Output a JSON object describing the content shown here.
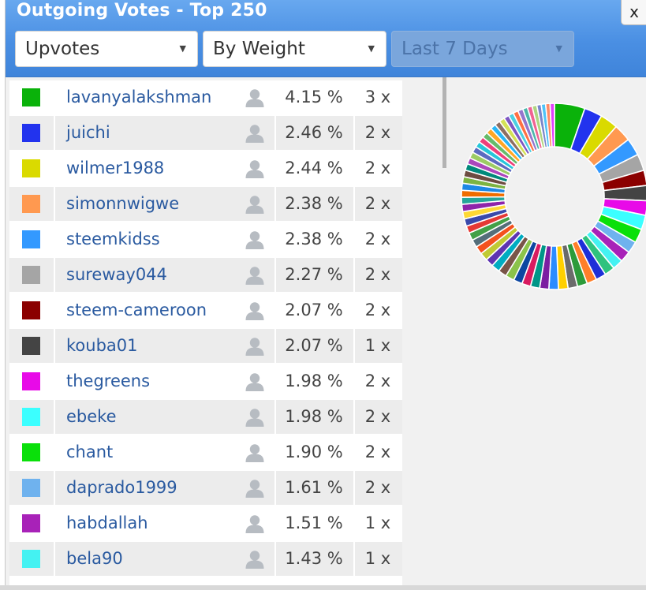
{
  "window": {
    "title": "Outgoing Votes - Top 250",
    "close_label": "x"
  },
  "filters": {
    "type": "Upvotes",
    "sort": "By Weight",
    "period": "Last 7 Days",
    "period_disabled": true
  },
  "colors": {
    "title_bar": "#4a8fe3",
    "link": "#2a5aa0"
  },
  "voters": [
    {
      "name": "lavanyalakshman",
      "color": "#0ab20a",
      "percent": "4.15 %",
      "count": "3 x"
    },
    {
      "name": "juichi",
      "color": "#2233ee",
      "percent": "2.46 %",
      "count": "2 x"
    },
    {
      "name": "wilmer1988",
      "color": "#dada00",
      "percent": "2.44 %",
      "count": "2 x"
    },
    {
      "name": "simonnwigwe",
      "color": "#ff9950",
      "percent": "2.38 %",
      "count": "2 x"
    },
    {
      "name": "steemkidss",
      "color": "#3399ff",
      "percent": "2.38 %",
      "count": "2 x"
    },
    {
      "name": "sureway044",
      "color": "#a5a5a5",
      "percent": "2.27 %",
      "count": "2 x"
    },
    {
      "name": "steem-cameroon",
      "color": "#8b0000",
      "percent": "2.07 %",
      "count": "2 x"
    },
    {
      "name": "kouba01",
      "color": "#444444",
      "percent": "2.07 %",
      "count": "1 x"
    },
    {
      "name": "thegreens",
      "color": "#e80ae8",
      "percent": "1.98 %",
      "count": "2 x"
    },
    {
      "name": "ebeke",
      "color": "#3bffff",
      "percent": "1.98 %",
      "count": "2 x"
    },
    {
      "name": "chant",
      "color": "#0ae00a",
      "percent": "1.90 %",
      "count": "2 x"
    },
    {
      "name": "daprado1999",
      "color": "#6fb2ee",
      "percent": "1.61 %",
      "count": "2 x"
    },
    {
      "name": "habdallah",
      "color": "#a822b8",
      "percent": "1.51 %",
      "count": "1 x"
    },
    {
      "name": "bela90",
      "color": "#44f2f2",
      "percent": "1.43 %",
      "count": "1 x"
    }
  ],
  "icons": {
    "voter": "user-icon",
    "dropdown": "caret-down-icon"
  },
  "chart_data": {
    "type": "pie",
    "style": "donut",
    "series": [
      {
        "values": [
          4.15,
          2.46,
          2.44,
          2.38,
          2.38,
          2.27,
          2.07,
          2.07,
          1.98,
          1.98,
          1.9,
          1.61,
          1.51,
          1.43,
          1.4,
          1.4,
          1.35,
          1.35,
          1.3,
          1.3,
          1.3,
          1.25,
          1.25,
          1.2,
          1.2,
          1.2,
          1.15,
          1.15,
          1.1,
          1.1,
          1.1,
          1.05,
          1.05,
          1.0,
          1.0,
          1.0,
          1.0,
          0.95,
          0.95,
          0.95,
          0.9,
          0.9,
          0.9,
          0.85,
          0.85,
          0.85,
          0.8,
          0.8,
          0.8,
          0.8,
          0.75,
          0.75,
          0.75,
          0.7,
          0.7,
          0.7,
          0.7,
          0.65,
          0.65,
          0.65,
          0.6,
          0.6,
          0.6,
          0.6
        ]
      }
    ],
    "colors": [
      "#0ab20a",
      "#2233ee",
      "#dada00",
      "#ff9950",
      "#3399ff",
      "#a5a5a5",
      "#8b0000",
      "#444444",
      "#e80ae8",
      "#3bffff",
      "#0ae00a",
      "#6fb2ee",
      "#a822b8",
      "#44f2f2",
      "#2ec27e",
      "#1d2fd8",
      "#ff7f2a",
      "#2d9b3a",
      "#6b6b6b",
      "#ffd000",
      "#2b8cff",
      "#7b1fa2",
      "#009688",
      "#d81b60",
      "#0d47a1",
      "#8bc34a",
      "#795548",
      "#00acc1",
      "#5e35b1",
      "#c0ca33",
      "#f4511e",
      "#546e7a",
      "#43a047",
      "#e53935",
      "#3949ab",
      "#fdd835",
      "#8e24aa",
      "#26a69a",
      "#ef6c00",
      "#1e88e5",
      "#7cb342",
      "#6d4c41",
      "#00897b",
      "#ab47bc",
      "#9ccc65",
      "#5c6bc0",
      "#26c6da",
      "#ec407a",
      "#66bb6a",
      "#ffa726",
      "#29b6f6",
      "#8d6e63",
      "#d4e157",
      "#7e57c2",
      "#4dd0e1",
      "#ff7043",
      "#9575cd",
      "#4db6ac",
      "#f06292",
      "#aed581",
      "#7986cb",
      "#4fc3f7",
      "#ff8a65",
      "#e040fb"
    ],
    "legend": "left"
  }
}
